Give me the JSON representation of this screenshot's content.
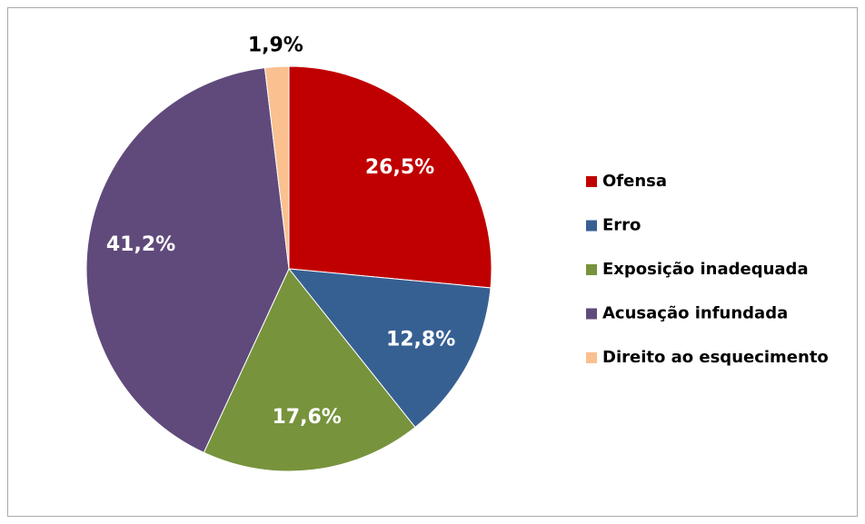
{
  "chart_data": {
    "type": "pie",
    "categories": [
      "Ofensa",
      "Erro",
      "Exposição inadequada",
      "Acusação infundada",
      "Direito ao esquecimento"
    ],
    "values": [
      26.5,
      12.8,
      17.6,
      41.2,
      1.9
    ],
    "value_labels": [
      "26,5%",
      "12,8%",
      "17,6%",
      "41,2%",
      "1,9%"
    ],
    "colors": [
      "#C00000",
      "#376092",
      "#77933C",
      "#604A7B",
      "#FAC090"
    ],
    "legend": "right"
  }
}
